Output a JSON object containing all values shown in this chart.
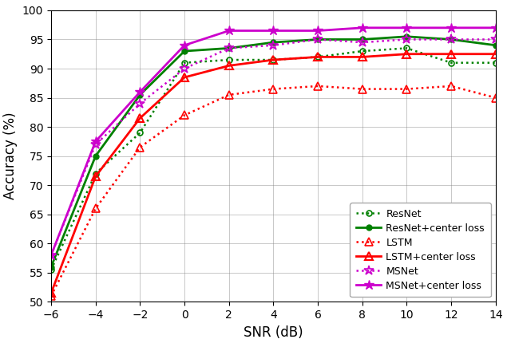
{
  "snr": [
    -6,
    -4,
    -2,
    0,
    2,
    4,
    6,
    8,
    10,
    12,
    14
  ],
  "ResNet": [
    55.5,
    72.0,
    79.0,
    91.0,
    91.5,
    91.5,
    92.0,
    93.0,
    93.5,
    91.0,
    91.0
  ],
  "ResNet_center": [
    56.0,
    75.0,
    85.5,
    93.0,
    93.5,
    94.5,
    95.0,
    95.0,
    95.5,
    95.0,
    94.0
  ],
  "LSTM": [
    51.0,
    66.0,
    76.5,
    82.0,
    85.5,
    86.5,
    87.0,
    86.5,
    86.5,
    87.0,
    85.0
  ],
  "LSTM_center": [
    51.5,
    71.5,
    81.5,
    88.5,
    90.5,
    91.5,
    92.0,
    92.0,
    92.5,
    92.5,
    92.5
  ],
  "MSNet": [
    58.0,
    77.0,
    84.0,
    90.0,
    93.5,
    94.0,
    95.0,
    94.5,
    95.0,
    95.0,
    95.0
  ],
  "MSNet_center": [
    58.0,
    77.5,
    86.0,
    94.0,
    96.5,
    96.5,
    96.5,
    97.0,
    97.0,
    97.0,
    97.0
  ],
  "ylabel": "Accuracy (%)",
  "xlabel": "SNR (dB)",
  "ylim": [
    50,
    100
  ],
  "xlim": [
    -6,
    14
  ],
  "yticks": [
    50,
    55,
    60,
    65,
    70,
    75,
    80,
    85,
    90,
    95,
    100
  ],
  "xticks": [
    -6,
    -4,
    -2,
    0,
    2,
    4,
    6,
    8,
    10,
    12,
    14
  ],
  "green": "#008000",
  "red": "#ff0000",
  "magenta": "#cc00cc",
  "legend_labels": [
    "ResNet",
    "ResNet+center loss",
    "LSTM",
    "LSTM+center loss",
    "MSNet",
    "MSNet+center loss"
  ]
}
